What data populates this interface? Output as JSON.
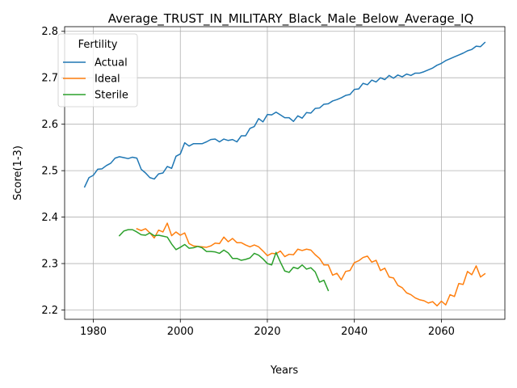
{
  "chart_data": {
    "type": "line",
    "title": "Average_TRUST_IN_MILITARY_Black_Male_Below_Average_IQ",
    "xlabel": "Years",
    "ylabel": "Score(1-3)",
    "xlim": [
      1973.4,
      2074.6
    ],
    "ylim": [
      2.18,
      2.81
    ],
    "xticks": [
      1980,
      2000,
      2020,
      2040,
      2060
    ],
    "yticks": [
      2.2,
      2.3,
      2.4,
      2.5,
      2.6,
      2.7,
      2.8
    ],
    "ytick_labels": [
      "2.2",
      "2.3",
      "2.4",
      "2.5",
      "2.6",
      "2.7",
      "2.8"
    ],
    "grid": true,
    "legend": {
      "title": "Fertility",
      "position": "top-left"
    },
    "series": [
      {
        "name": "Actual",
        "color": "#1f77b4",
        "x": [
          1978,
          1979,
          1980,
          1981,
          1982,
          1983,
          1984,
          1985,
          1986,
          1987,
          1988,
          1989,
          1990,
          1991,
          1992,
          1993,
          1994,
          1995,
          1996,
          1997,
          1998,
          1999,
          2000,
          2001,
          2002,
          2003,
          2004,
          2005,
          2006,
          2007,
          2008,
          2009,
          2010,
          2011,
          2012,
          2013,
          2014,
          2015,
          2016,
          2017,
          2018,
          2019,
          2020,
          2021,
          2022,
          2023,
          2024,
          2025,
          2026,
          2027,
          2028,
          2029,
          2030,
          2031,
          2032,
          2033,
          2034,
          2035,
          2036,
          2037,
          2038,
          2039,
          2040,
          2041,
          2042,
          2043,
          2044,
          2045,
          2046,
          2047,
          2048,
          2049,
          2050,
          2051,
          2052,
          2053,
          2054,
          2055,
          2056,
          2057,
          2058,
          2059,
          2060,
          2061,
          2062,
          2063,
          2064,
          2065,
          2066,
          2067,
          2068,
          2069,
          2070
        ],
        "values": [
          2.465,
          2.485,
          2.49,
          2.503,
          2.504,
          2.511,
          2.516,
          2.527,
          2.53,
          2.528,
          2.526,
          2.529,
          2.527,
          2.503,
          2.495,
          2.485,
          2.482,
          2.493,
          2.495,
          2.509,
          2.505,
          2.531,
          2.536,
          2.56,
          2.553,
          2.558,
          2.558,
          2.558,
          2.562,
          2.567,
          2.568,
          2.562,
          2.568,
          2.565,
          2.567,
          2.562,
          2.575,
          2.575,
          2.591,
          2.595,
          2.612,
          2.605,
          2.621,
          2.62,
          2.626,
          2.62,
          2.614,
          2.614,
          2.606,
          2.618,
          2.613,
          2.625,
          2.624,
          2.634,
          2.635,
          2.643,
          2.644,
          2.65,
          2.653,
          2.657,
          2.662,
          2.664,
          2.675,
          2.676,
          2.688,
          2.685,
          2.695,
          2.691,
          2.7,
          2.696,
          2.705,
          2.699,
          2.706,
          2.702,
          2.708,
          2.705,
          2.71,
          2.71,
          2.713,
          2.717,
          2.721,
          2.727,
          2.731,
          2.737,
          2.741,
          2.745,
          2.749,
          2.753,
          2.758,
          2.761,
          2.768,
          2.767,
          2.776
        ]
      },
      {
        "name": "Ideal",
        "color": "#ff7f0e",
        "x": [
          1990,
          1991,
          1992,
          1993,
          1994,
          1995,
          1996,
          1997,
          1998,
          1999,
          2000,
          2001,
          2002,
          2003,
          2004,
          2005,
          2006,
          2007,
          2008,
          2009,
          2010,
          2011,
          2012,
          2013,
          2014,
          2015,
          2016,
          2017,
          2018,
          2019,
          2020,
          2021,
          2022,
          2023,
          2024,
          2025,
          2026,
          2027,
          2028,
          2029,
          2030,
          2031,
          2032,
          2033,
          2034,
          2035,
          2036,
          2037,
          2038,
          2039,
          2040,
          2041,
          2042,
          2043,
          2044,
          2045,
          2046,
          2047,
          2048,
          2049,
          2050,
          2051,
          2052,
          2053,
          2054,
          2055,
          2056,
          2057,
          2058,
          2059,
          2060,
          2061,
          2062,
          2063,
          2064,
          2065,
          2066,
          2067,
          2068,
          2069,
          2070
        ],
        "values": [
          2.375,
          2.371,
          2.375,
          2.366,
          2.355,
          2.372,
          2.368,
          2.387,
          2.36,
          2.368,
          2.361,
          2.366,
          2.343,
          2.338,
          2.337,
          2.336,
          2.335,
          2.338,
          2.344,
          2.343,
          2.357,
          2.347,
          2.354,
          2.345,
          2.345,
          2.34,
          2.336,
          2.34,
          2.336,
          2.327,
          2.317,
          2.322,
          2.321,
          2.327,
          2.315,
          2.32,
          2.319,
          2.331,
          2.328,
          2.331,
          2.329,
          2.319,
          2.311,
          2.297,
          2.297,
          2.275,
          2.279,
          2.265,
          2.283,
          2.285,
          2.302,
          2.306,
          2.313,
          2.316,
          2.303,
          2.307,
          2.285,
          2.29,
          2.271,
          2.269,
          2.253,
          2.248,
          2.237,
          2.233,
          2.226,
          2.222,
          2.22,
          2.215,
          2.218,
          2.209,
          2.219,
          2.211,
          2.233,
          2.229,
          2.257,
          2.255,
          2.283,
          2.276,
          2.295,
          2.271,
          2.278
        ]
      },
      {
        "name": "Sterile",
        "color": "#2ca02c",
        "x": [
          1986,
          1987,
          1988,
          1989,
          1990,
          1991,
          1992,
          1993,
          1994,
          1995,
          1996,
          1997,
          1998,
          1999,
          2000,
          2001,
          2002,
          2003,
          2004,
          2005,
          2006,
          2007,
          2008,
          2009,
          2010,
          2011,
          2012,
          2013,
          2014,
          2015,
          2016,
          2017,
          2018,
          2019,
          2020,
          2021,
          2022,
          2023,
          2024,
          2025,
          2026,
          2027,
          2028,
          2029,
          2030,
          2031,
          2032,
          2033,
          2034
        ],
        "values": [
          2.36,
          2.37,
          2.373,
          2.373,
          2.368,
          2.362,
          2.361,
          2.366,
          2.36,
          2.361,
          2.359,
          2.357,
          2.342,
          2.33,
          2.335,
          2.341,
          2.333,
          2.334,
          2.337,
          2.334,
          2.326,
          2.326,
          2.325,
          2.322,
          2.329,
          2.323,
          2.311,
          2.311,
          2.307,
          2.309,
          2.312,
          2.322,
          2.318,
          2.31,
          2.3,
          2.297,
          2.324,
          2.303,
          2.284,
          2.281,
          2.292,
          2.289,
          2.297,
          2.288,
          2.291,
          2.282,
          2.26,
          2.264,
          2.242
        ]
      }
    ]
  }
}
